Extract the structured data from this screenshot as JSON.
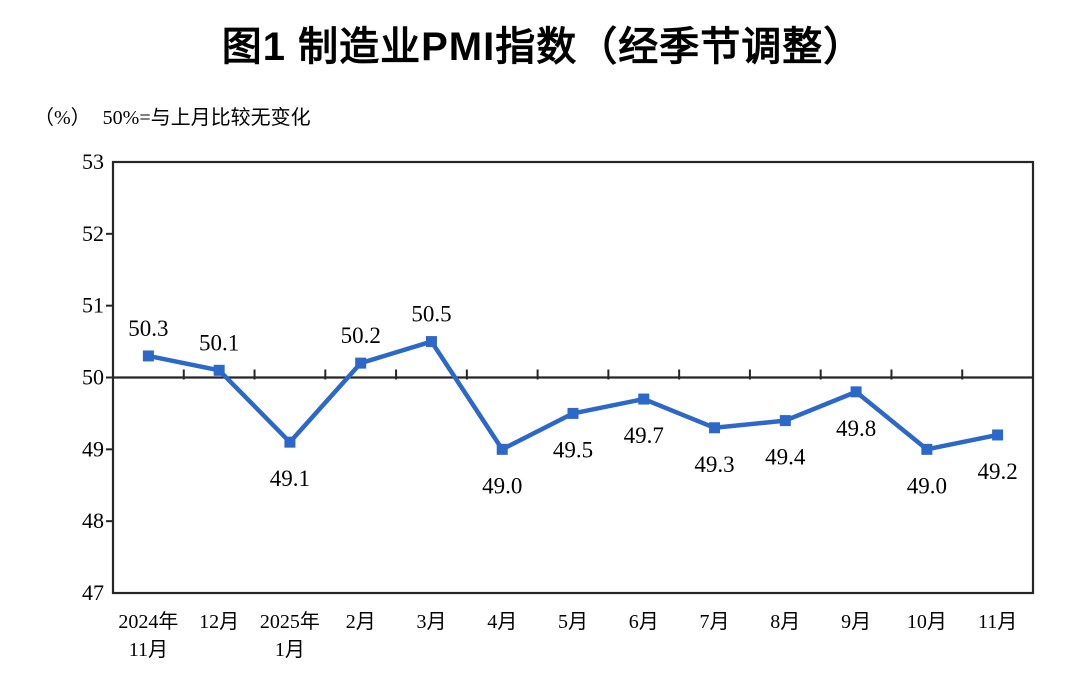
{
  "figure": {
    "title": "图1 制造业PMI指数（经季节调整）",
    "unit_label": "（%）",
    "reference_note": "50%=与上月比较无变化"
  },
  "chart_data": {
    "type": "line",
    "title": "图1 制造业PMI指数（经季节调整）",
    "ylabel": "（%）",
    "annotation": "50%=与上月比较无变化",
    "categories": [
      [
        "2024年",
        "11月"
      ],
      [
        "12月"
      ],
      [
        "2025年",
        "1月"
      ],
      [
        "2月"
      ],
      [
        "3月"
      ],
      [
        "4月"
      ],
      [
        "5月"
      ],
      [
        "6月"
      ],
      [
        "7月"
      ],
      [
        "8月"
      ],
      [
        "9月"
      ],
      [
        "10月"
      ],
      [
        "11月"
      ]
    ],
    "values": [
      50.3,
      50.1,
      49.1,
      50.2,
      50.5,
      49.0,
      49.5,
      49.7,
      49.3,
      49.4,
      49.8,
      49.0,
      49.2
    ],
    "data_labels": [
      "50.3",
      "50.1",
      "49.1",
      "50.2",
      "50.5",
      "49.0",
      "49.5",
      "49.7",
      "49.3",
      "49.4",
      "49.8",
      "49.0",
      "49.2"
    ],
    "ylim": [
      47,
      53
    ],
    "ytick_step": 1,
    "yticks": [
      47,
      48,
      49,
      50,
      51,
      52,
      53
    ],
    "reference_line": 50,
    "grid": false,
    "legend": "none",
    "marker": "square",
    "colors": {
      "series": "#2C68C8",
      "axis": "#262626",
      "text": "#000000",
      "background": "#FFFFFF"
    }
  }
}
